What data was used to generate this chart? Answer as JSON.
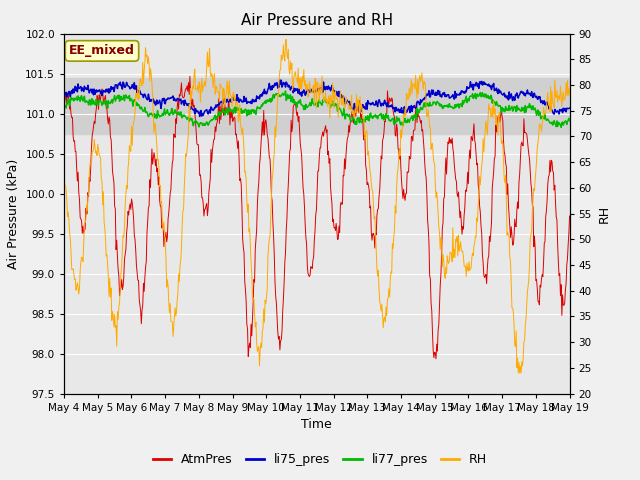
{
  "title": "Air Pressure and RH",
  "xlabel": "Time",
  "ylabel_left": "Air Pressure (kPa)",
  "ylabel_right": "RH",
  "annotation": "EE_mixed",
  "ylim_left": [
    97.5,
    102.0
  ],
  "ylim_right": [
    20,
    90
  ],
  "yticks_left": [
    97.5,
    98.0,
    98.5,
    99.0,
    99.5,
    100.0,
    100.5,
    101.0,
    101.5,
    102.0
  ],
  "yticks_right": [
    20,
    25,
    30,
    35,
    40,
    45,
    50,
    55,
    60,
    65,
    70,
    75,
    80,
    85,
    90
  ],
  "x_tick_labels": [
    "May 4",
    "May 5",
    "May 6",
    "May 7",
    "May 8",
    "May 9",
    "May 10",
    "May 11",
    "May 12",
    "May 13",
    "May 14",
    "May 15",
    "May 16",
    "May 17",
    "May 18",
    "May 19"
  ],
  "colors": {
    "AtmPres": "#dd0000",
    "li75_pres": "#0000cc",
    "li77_pres": "#00bb00",
    "RH": "#ffaa00"
  },
  "background_color": "#f0f0f0",
  "plot_bg_color": "#e8e8e8",
  "band_color": "#d0d0d0",
  "band_lower": 100.75,
  "band_upper": 101.45,
  "legend_entries": [
    "AtmPres",
    "li75_pres",
    "li77_pres",
    "RH"
  ],
  "title_fontsize": 11,
  "axis_label_fontsize": 9,
  "tick_fontsize": 7.5,
  "legend_fontsize": 9,
  "annotation_fontsize": 9,
  "n_days": 15,
  "n_points": 720
}
